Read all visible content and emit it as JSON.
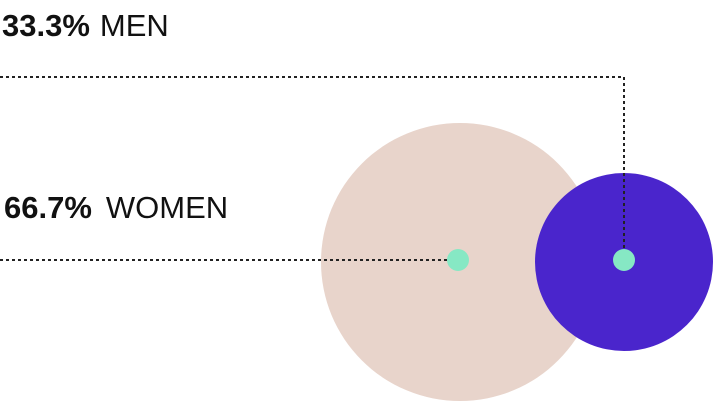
{
  "colors": {
    "women_bubble": "#E8D4CB",
    "men_bubble": "#4A25CC",
    "marker": "#86E8C4",
    "leader_line": "#222222",
    "text": "#111111",
    "background": "#ffffff"
  },
  "chart_data": {
    "type": "bubble",
    "title": "",
    "series": [
      {
        "name": "MEN",
        "percent_label": "33.3%",
        "value": 33.3,
        "color": "#4A25CC"
      },
      {
        "name": "WOMEN",
        "percent_label": "66.7%",
        "value": 66.7,
        "color": "#E8D4CB"
      }
    ]
  }
}
